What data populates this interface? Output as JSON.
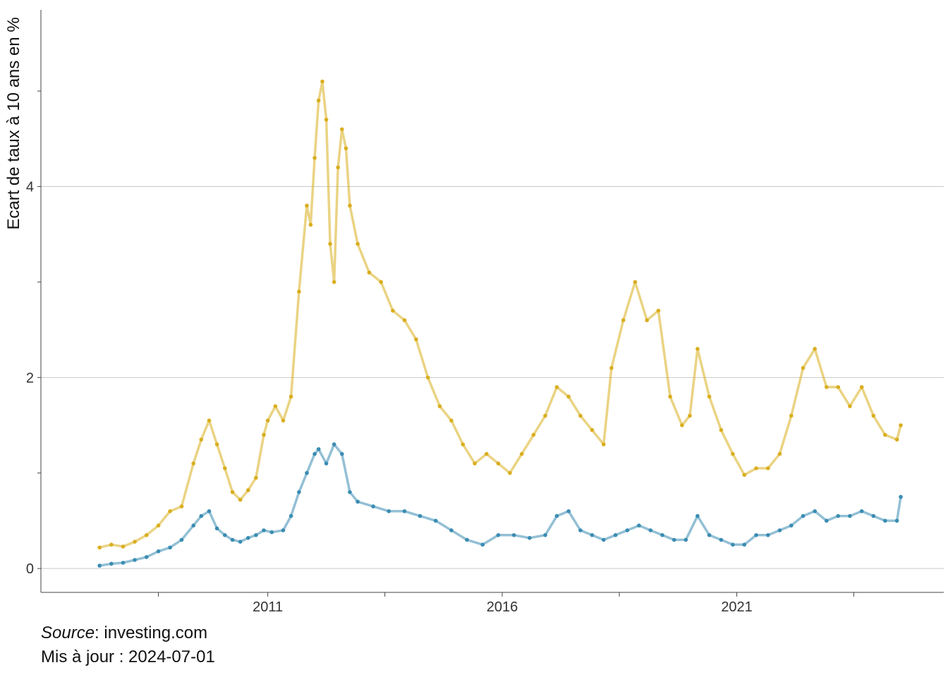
{
  "caption": {
    "source_label": "Source",
    "source_value": ": investing.com",
    "updated_text": "Mis à jour : 2024-07-01"
  },
  "chart_data": {
    "type": "line",
    "title": "",
    "xlabel": "",
    "ylabel": "Ecart de taux à 10 ans en %",
    "x_type": "date",
    "xlim": [
      "2006-03-01",
      "2025-06-01"
    ],
    "ylim": [
      -0.25,
      5.85
    ],
    "x_ticks": [
      {
        "date": "2008-09-01",
        "label": ""
      },
      {
        "date": "2011-01-01",
        "label": "2011"
      },
      {
        "date": "2013-07-01",
        "label": ""
      },
      {
        "date": "2016-01-01",
        "label": "2016"
      },
      {
        "date": "2018-07-01",
        "label": ""
      },
      {
        "date": "2021-01-01",
        "label": "2021"
      },
      {
        "date": "2023-07-01",
        "label": ""
      }
    ],
    "y_ticks": [
      {
        "value": 0,
        "label": "0",
        "grid": true
      },
      {
        "value": 1,
        "label": "",
        "grid": false
      },
      {
        "value": 2,
        "label": "2",
        "grid": true
      },
      {
        "value": 3,
        "label": "",
        "grid": false
      },
      {
        "value": 4,
        "label": "4",
        "grid": true
      },
      {
        "value": 5,
        "label": "",
        "grid": false
      }
    ],
    "grid": "horizontal",
    "legend": "none",
    "series": [
      {
        "color": "#d9ae1e",
        "points": [
          [
            "2007-06-01",
            0.22
          ],
          [
            "2007-09-01",
            0.25
          ],
          [
            "2007-12-01",
            0.23
          ],
          [
            "2008-03-01",
            0.28
          ],
          [
            "2008-06-01",
            0.35
          ],
          [
            "2008-09-01",
            0.45
          ],
          [
            "2008-12-01",
            0.6
          ],
          [
            "2009-03-01",
            0.65
          ],
          [
            "2009-06-01",
            1.1
          ],
          [
            "2009-08-01",
            1.35
          ],
          [
            "2009-10-01",
            1.55
          ],
          [
            "2009-12-01",
            1.3
          ],
          [
            "2010-02-01",
            1.05
          ],
          [
            "2010-04-01",
            0.8
          ],
          [
            "2010-06-01",
            0.72
          ],
          [
            "2010-08-01",
            0.82
          ],
          [
            "2010-10-01",
            0.95
          ],
          [
            "2010-12-01",
            1.4
          ],
          [
            "2011-01-01",
            1.55
          ],
          [
            "2011-03-01",
            1.7
          ],
          [
            "2011-05-01",
            1.55
          ],
          [
            "2011-07-01",
            1.8
          ],
          [
            "2011-09-01",
            2.9
          ],
          [
            "2011-11-01",
            3.8
          ],
          [
            "2011-12-01",
            3.6
          ],
          [
            "2012-01-01",
            4.3
          ],
          [
            "2012-02-01",
            4.9
          ],
          [
            "2012-03-01",
            5.1
          ],
          [
            "2012-04-01",
            4.7
          ],
          [
            "2012-05-01",
            3.4
          ],
          [
            "2012-06-01",
            3.0
          ],
          [
            "2012-07-01",
            4.2
          ],
          [
            "2012-08-01",
            4.6
          ],
          [
            "2012-09-01",
            4.4
          ],
          [
            "2012-10-01",
            3.8
          ],
          [
            "2012-12-01",
            3.4
          ],
          [
            "2013-03-01",
            3.1
          ],
          [
            "2013-06-01",
            3.0
          ],
          [
            "2013-09-01",
            2.7
          ],
          [
            "2013-12-01",
            2.6
          ],
          [
            "2014-03-01",
            2.4
          ],
          [
            "2014-06-01",
            2.0
          ],
          [
            "2014-09-01",
            1.7
          ],
          [
            "2014-12-01",
            1.55
          ],
          [
            "2015-03-01",
            1.3
          ],
          [
            "2015-06-01",
            1.1
          ],
          [
            "2015-09-01",
            1.2
          ],
          [
            "2015-12-01",
            1.1
          ],
          [
            "2016-03-01",
            1.0
          ],
          [
            "2016-06-01",
            1.2
          ],
          [
            "2016-09-01",
            1.4
          ],
          [
            "2016-12-01",
            1.6
          ],
          [
            "2017-03-01",
            1.9
          ],
          [
            "2017-06-01",
            1.8
          ],
          [
            "2017-09-01",
            1.6
          ],
          [
            "2017-12-01",
            1.45
          ],
          [
            "2018-03-01",
            1.3
          ],
          [
            "2018-05-01",
            2.1
          ],
          [
            "2018-08-01",
            2.6
          ],
          [
            "2018-11-01",
            3.0
          ],
          [
            "2019-02-01",
            2.6
          ],
          [
            "2019-05-01",
            2.7
          ],
          [
            "2019-08-01",
            1.8
          ],
          [
            "2019-11-01",
            1.5
          ],
          [
            "2020-01-01",
            1.6
          ],
          [
            "2020-03-01",
            2.3
          ],
          [
            "2020-06-01",
            1.8
          ],
          [
            "2020-09-01",
            1.45
          ],
          [
            "2020-12-01",
            1.2
          ],
          [
            "2021-03-01",
            0.98
          ],
          [
            "2021-06-01",
            1.05
          ],
          [
            "2021-09-01",
            1.05
          ],
          [
            "2021-12-01",
            1.2
          ],
          [
            "2022-03-01",
            1.6
          ],
          [
            "2022-06-01",
            2.1
          ],
          [
            "2022-09-01",
            2.3
          ],
          [
            "2022-12-01",
            1.9
          ],
          [
            "2023-03-01",
            1.9
          ],
          [
            "2023-06-01",
            1.7
          ],
          [
            "2023-09-01",
            1.9
          ],
          [
            "2023-12-01",
            1.6
          ],
          [
            "2024-03-01",
            1.4
          ],
          [
            "2024-06-01",
            1.35
          ],
          [
            "2024-07-01",
            1.5
          ]
        ]
      },
      {
        "color": "#3a8cb2",
        "points": [
          [
            "2007-06-01",
            0.03
          ],
          [
            "2007-09-01",
            0.05
          ],
          [
            "2007-12-01",
            0.06
          ],
          [
            "2008-03-01",
            0.09
          ],
          [
            "2008-06-01",
            0.12
          ],
          [
            "2008-09-01",
            0.18
          ],
          [
            "2008-12-01",
            0.22
          ],
          [
            "2009-03-01",
            0.3
          ],
          [
            "2009-06-01",
            0.45
          ],
          [
            "2009-08-01",
            0.55
          ],
          [
            "2009-10-01",
            0.6
          ],
          [
            "2009-12-01",
            0.42
          ],
          [
            "2010-02-01",
            0.35
          ],
          [
            "2010-04-01",
            0.3
          ],
          [
            "2010-06-01",
            0.28
          ],
          [
            "2010-08-01",
            0.32
          ],
          [
            "2010-10-01",
            0.35
          ],
          [
            "2010-12-01",
            0.4
          ],
          [
            "2011-02-01",
            0.38
          ],
          [
            "2011-05-01",
            0.4
          ],
          [
            "2011-07-01",
            0.55
          ],
          [
            "2011-09-01",
            0.8
          ],
          [
            "2011-11-01",
            1.0
          ],
          [
            "2012-01-01",
            1.2
          ],
          [
            "2012-02-01",
            1.25
          ],
          [
            "2012-04-01",
            1.1
          ],
          [
            "2012-06-01",
            1.3
          ],
          [
            "2012-08-01",
            1.2
          ],
          [
            "2012-10-01",
            0.8
          ],
          [
            "2012-12-01",
            0.7
          ],
          [
            "2013-04-01",
            0.65
          ],
          [
            "2013-08-01",
            0.6
          ],
          [
            "2013-12-01",
            0.6
          ],
          [
            "2014-04-01",
            0.55
          ],
          [
            "2014-08-01",
            0.5
          ],
          [
            "2014-12-01",
            0.4
          ],
          [
            "2015-04-01",
            0.3
          ],
          [
            "2015-08-01",
            0.25
          ],
          [
            "2015-12-01",
            0.35
          ],
          [
            "2016-04-01",
            0.35
          ],
          [
            "2016-08-01",
            0.32
          ],
          [
            "2016-12-01",
            0.35
          ],
          [
            "2017-03-01",
            0.55
          ],
          [
            "2017-06-01",
            0.6
          ],
          [
            "2017-09-01",
            0.4
          ],
          [
            "2017-12-01",
            0.35
          ],
          [
            "2018-03-01",
            0.3
          ],
          [
            "2018-06-01",
            0.35
          ],
          [
            "2018-09-01",
            0.4
          ],
          [
            "2018-12-01",
            0.45
          ],
          [
            "2019-03-01",
            0.4
          ],
          [
            "2019-06-01",
            0.35
          ],
          [
            "2019-09-01",
            0.3
          ],
          [
            "2019-12-01",
            0.3
          ],
          [
            "2020-03-01",
            0.55
          ],
          [
            "2020-06-01",
            0.35
          ],
          [
            "2020-09-01",
            0.3
          ],
          [
            "2020-12-01",
            0.25
          ],
          [
            "2021-03-01",
            0.25
          ],
          [
            "2021-06-01",
            0.35
          ],
          [
            "2021-09-01",
            0.35
          ],
          [
            "2021-12-01",
            0.4
          ],
          [
            "2022-03-01",
            0.45
          ],
          [
            "2022-06-01",
            0.55
          ],
          [
            "2022-09-01",
            0.6
          ],
          [
            "2022-12-01",
            0.5
          ],
          [
            "2023-03-01",
            0.55
          ],
          [
            "2023-06-01",
            0.55
          ],
          [
            "2023-09-01",
            0.6
          ],
          [
            "2023-12-01",
            0.55
          ],
          [
            "2024-03-01",
            0.5
          ],
          [
            "2024-06-01",
            0.5
          ],
          [
            "2024-07-01",
            0.75
          ]
        ]
      }
    ]
  }
}
